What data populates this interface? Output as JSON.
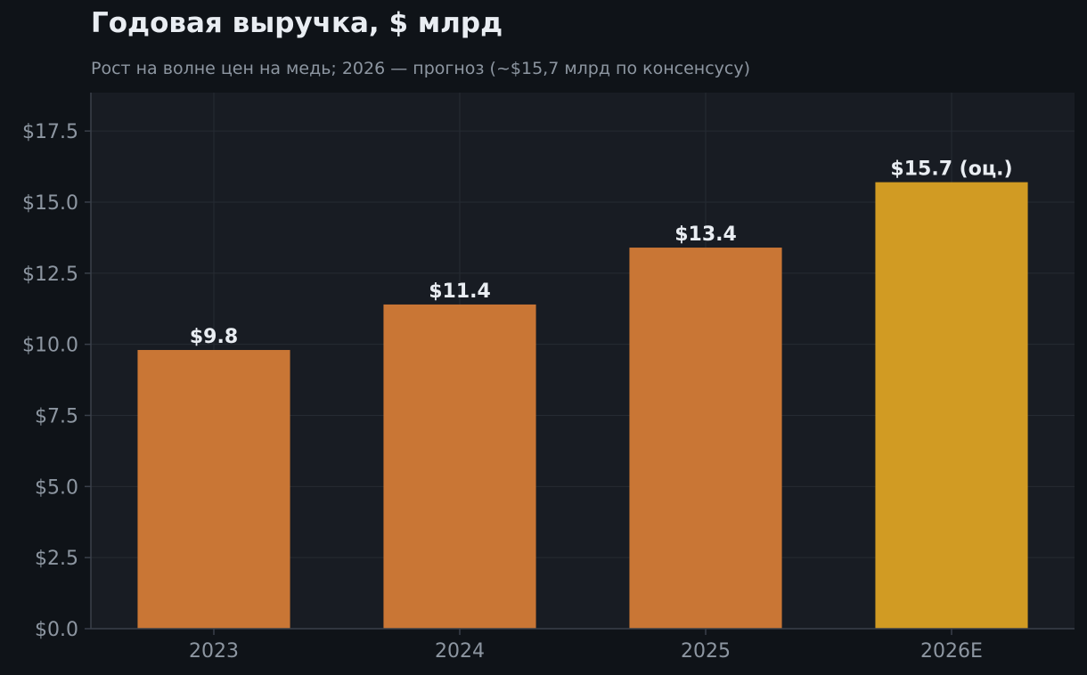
{
  "chart_data": {
    "type": "bar",
    "title": "Годовая выручка, $ млрд",
    "subtitle": "Рост на волне цен на медь; 2026 — прогноз (~$15,7 млрд по консенсусу)",
    "categories": [
      "2023",
      "2024",
      "2025",
      "2026E"
    ],
    "values": [
      9.8,
      11.4,
      13.4,
      15.7
    ],
    "data_labels": [
      "$9.8",
      "$11.4",
      "$13.4",
      "$15.7 (оц.)"
    ],
    "y_ticks": [
      0,
      2.5,
      5,
      7.5,
      10,
      12.5,
      15,
      17.5
    ],
    "y_tick_labels": [
      "$0.0",
      "$2.5",
      "$5.0",
      "$7.5",
      "$10.0",
      "$12.5",
      "$15.0",
      "$17.5"
    ],
    "ylim": [
      0,
      18.85
    ],
    "xlabel": "",
    "ylabel": "",
    "grid": true,
    "colors": {
      "actual": "#c97635",
      "estimate": "#d19b23",
      "plot_background": "#181c23",
      "page_background": "#0f1318",
      "grid": "#262b33",
      "axis": "#3a404a"
    },
    "estimate_index": 3
  }
}
